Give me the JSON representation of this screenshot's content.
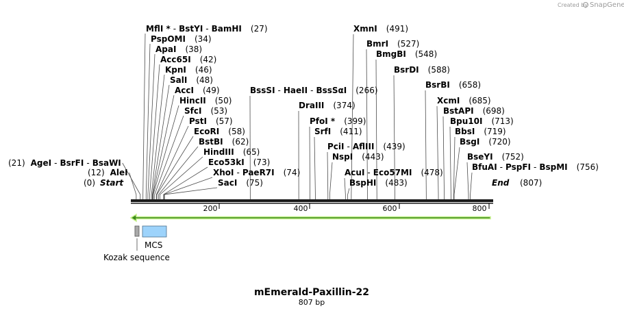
{
  "title": "mEmerald-Paxillin-22",
  "length_label": "807 bp",
  "credit": {
    "text": "Created by",
    "brand": "SnapGene"
  },
  "sequence_length": 807,
  "ruler_ticks": [
    "200",
    "400",
    "600",
    "800"
  ],
  "start_label": "Start",
  "start_pos": "(0)",
  "end_label": "End",
  "end_pos": "(807)",
  "features": [
    {
      "name": "MCS"
    },
    {
      "name": "Kozak sequence"
    }
  ],
  "sites_left": [
    {
      "parts": [
        "MflI *",
        "BstYI",
        "BamHI"
      ],
      "pos": "(27)"
    },
    {
      "parts": [
        "PspOMI"
      ],
      "pos": "(34)"
    },
    {
      "parts": [
        "ApaI"
      ],
      "pos": "(38)"
    },
    {
      "parts": [
        "Acc65I"
      ],
      "pos": "(42)"
    },
    {
      "parts": [
        "KpnI"
      ],
      "pos": "(46)"
    },
    {
      "parts": [
        "SalI"
      ],
      "pos": "(48)"
    },
    {
      "parts": [
        "AccI"
      ],
      "pos": "(49)"
    },
    {
      "parts": [
        "HincII"
      ],
      "pos": "(50)"
    },
    {
      "parts": [
        "SfcI"
      ],
      "pos": "(53)"
    },
    {
      "parts": [
        "PstI"
      ],
      "pos": "(57)"
    },
    {
      "parts": [
        "EcoRI"
      ],
      "pos": "(58)"
    },
    {
      "parts": [
        "BstBI"
      ],
      "pos": "(62)"
    },
    {
      "parts": [
        "HindIII"
      ],
      "pos": "(65)"
    },
    {
      "parts": [
        "Eco53kI"
      ],
      "pos": "(73)"
    },
    {
      "parts": [
        "XhoI",
        "PaeR7I"
      ],
      "pos": "(74)"
    },
    {
      "parts": [
        "SacI"
      ],
      "pos": "(75)"
    }
  ],
  "sites_far_left": [
    {
      "parts": [
        "AgeI",
        "BsrFI",
        "BsaWI"
      ],
      "pos": "(21)"
    },
    {
      "parts": [
        "AleI"
      ],
      "pos": "(12)"
    }
  ],
  "sites_right": [
    {
      "parts": [
        "BssSI",
        "HaeII",
        "BssSαI"
      ],
      "pos": "(266)"
    },
    {
      "parts": [
        "DraIII"
      ],
      "pos": "(374)"
    },
    {
      "parts": [
        "PfoI *"
      ],
      "pos": "(399)"
    },
    {
      "parts": [
        "SrfI"
      ],
      "pos": "(411)"
    },
    {
      "parts": [
        "PciI",
        "AflIII"
      ],
      "pos": "(439)"
    },
    {
      "parts": [
        "NspI"
      ],
      "pos": "(443)"
    },
    {
      "parts": [
        "XmnI"
      ],
      "pos": "(491)"
    },
    {
      "parts": [
        "BmrI"
      ],
      "pos": "(527)"
    },
    {
      "parts": [
        "BmgBI"
      ],
      "pos": "(548)"
    },
    {
      "parts": [
        "AcuI",
        "Eco57MI"
      ],
      "pos": "(478)"
    },
    {
      "parts": [
        "BspHI"
      ],
      "pos": "(483)"
    },
    {
      "parts": [
        "BsrDI"
      ],
      "pos": "(588)"
    },
    {
      "parts": [
        "BsrBI"
      ],
      "pos": "(658)"
    },
    {
      "parts": [
        "XcmI"
      ],
      "pos": "(685)"
    },
    {
      "parts": [
        "BstAPI"
      ],
      "pos": "(698)"
    },
    {
      "parts": [
        "Bpu10I"
      ],
      "pos": "(713)"
    },
    {
      "parts": [
        "BbsI"
      ],
      "pos": "(719)"
    },
    {
      "parts": [
        "BsgI"
      ],
      "pos": "(720)"
    },
    {
      "parts": [
        "BseYI"
      ],
      "pos": "(752)"
    },
    {
      "parts": [
        "BfuAI",
        "PspFI",
        "BspMI"
      ],
      "pos": "(756)"
    }
  ],
  "colors": {
    "arrow_fill": "#3a8a1a",
    "arrow_outline": "#c6f08c",
    "mcs_fill": "#9dd3fb",
    "mcs_stroke": "#4a6f8a",
    "kozak_fill": "#a9a9a9",
    "line": "#4a4a4a"
  }
}
